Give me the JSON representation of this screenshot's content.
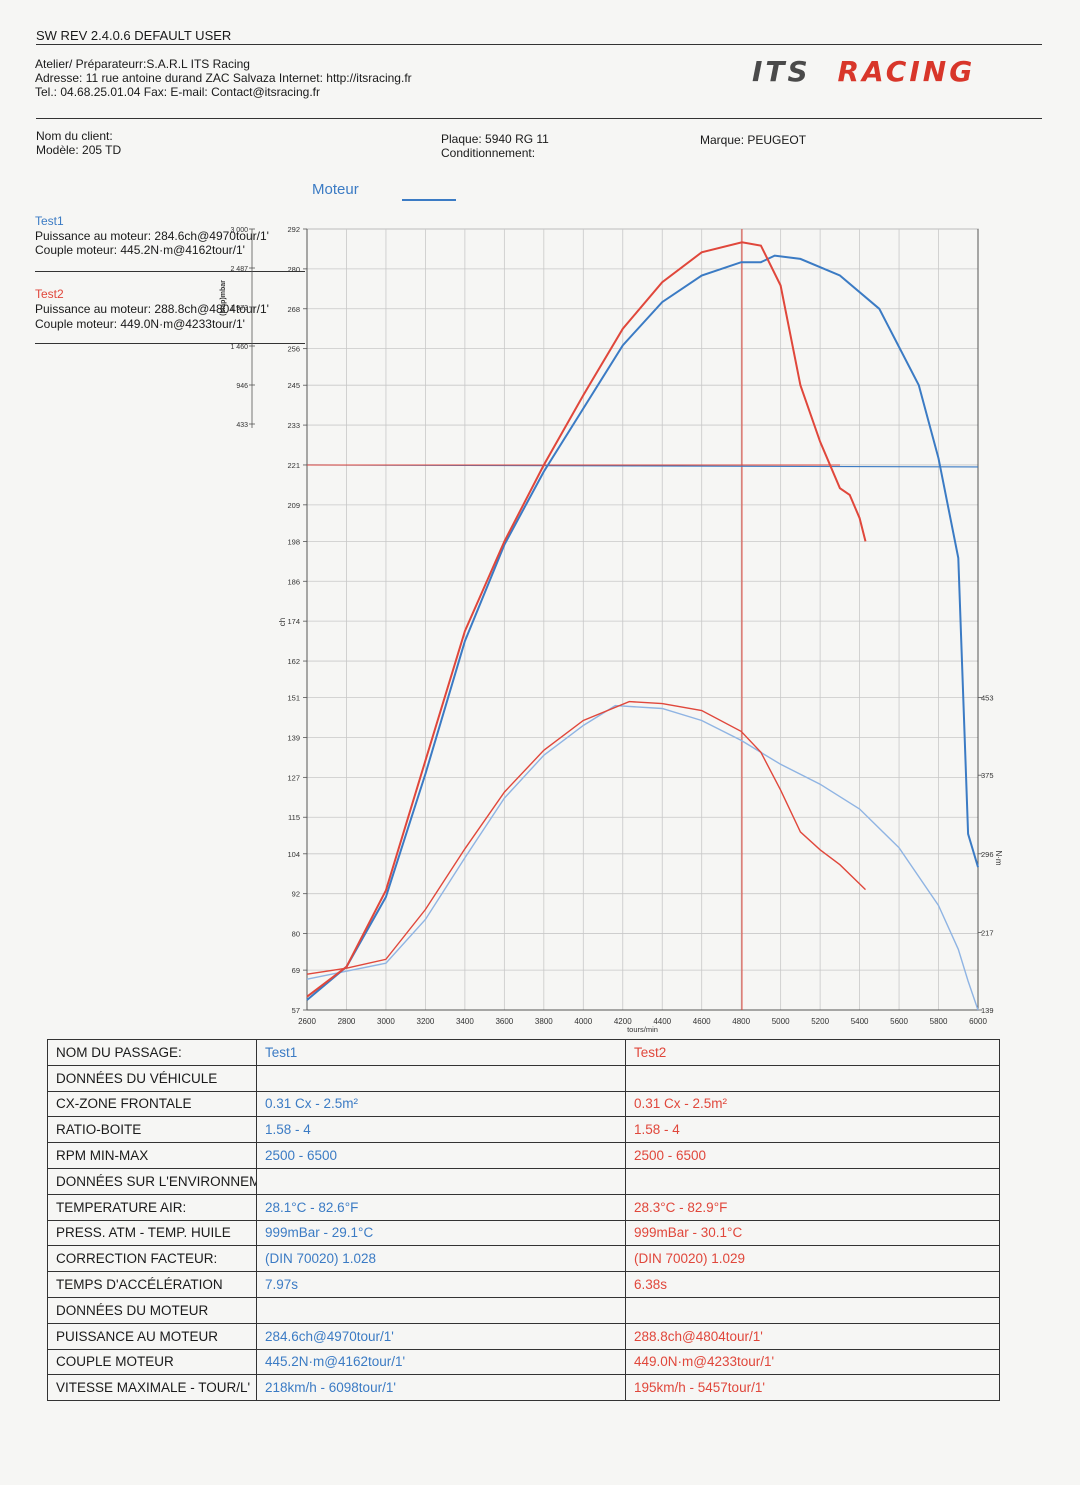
{
  "header": {
    "sw_line": "SW REV 2.4.0.6   DEFAULT USER",
    "atelier": "Atelier/ Préparateurr:S.A.R.L ITS Racing",
    "adresse": "Adresse: 11 rue antoine durand ZAC Salvaza Internet: http://itsracing.fr",
    "tel": "Tel.: 04.68.25.01.04 Fax:  E-mail: Contact@itsracing.fr",
    "brand_its": "ITS",
    "brand_racing": "RACING"
  },
  "client": {
    "nom": "Nom du client:",
    "modele": "Modèle: 205 TD",
    "plaque": "Plaque: 5940 RG 11",
    "conditionnement": "Conditionnement:",
    "marque": "Marque: PEUGEOT"
  },
  "legend": {
    "moteur": "Moteur",
    "test1_title": "Test1",
    "test1_power": "Puissance au moteur: 284.6ch@4970tour/1'",
    "test1_torque": "Couple moteur: 445.2N·m@4162tour/1'",
    "test2_title": "Test2",
    "test2_power": "Puissance au moteur: 288.8ch@4804tour/1'",
    "test2_torque": "Couple moteur: 449.0N·m@4233tour/1'"
  },
  "colors": {
    "test1": "#3b7bc4",
    "test1_torque": "#8fb4e3",
    "test2": "#e0473b"
  },
  "chart_data": {
    "type": "line",
    "xlabel": "tours/min",
    "ylabel_left": "ch",
    "ylabel_right": "N·m",
    "ylabel_map": "(Map)mbar",
    "xlim": [
      2600,
      6000
    ],
    "ylim": [
      57,
      292
    ],
    "y2lim": [
      139,
      453
    ],
    "x_ticks": [
      "2600",
      "2800",
      "3000",
      "3200",
      "3400",
      "3600",
      "3800",
      "4000",
      "4200",
      "4400",
      "4600",
      "4800",
      "5000",
      "5200",
      "5400",
      "5600",
      "5800",
      "6000"
    ],
    "y_ticks": [
      "57",
      "69",
      "80",
      "92",
      "104",
      "115",
      "127",
      "139",
      "151",
      "162",
      "174",
      "186",
      "198",
      "209",
      "221",
      "233",
      "245",
      "256",
      "268",
      "280",
      "292"
    ],
    "y2_ticks": [
      "139",
      "217",
      "296",
      "375",
      "453"
    ],
    "map_ticks": [
      "3 000",
      "2 487",
      "1 973",
      "1 460",
      "946",
      "433"
    ],
    "power_series": [
      {
        "name": "Test1",
        "x": [
          2600,
          2800,
          3000,
          3200,
          3400,
          3600,
          3800,
          4000,
          4200,
          4400,
          4600,
          4800,
          4900,
          4970,
          5100,
          5300,
          5500,
          5700,
          5800,
          5900,
          5950,
          6000
        ],
        "y": [
          60,
          70,
          91,
          128,
          168,
          197,
          219,
          238,
          257,
          270,
          278,
          282,
          282,
          284,
          283,
          278,
          268,
          245,
          223,
          193,
          110,
          100
        ]
      },
      {
        "name": "Test2",
        "x": [
          2600,
          2800,
          3000,
          3200,
          3400,
          3600,
          3800,
          4000,
          4200,
          4400,
          4600,
          4804,
          4900,
          5000,
          5100,
          5200,
          5300,
          5350,
          5400,
          5430
        ],
        "y": [
          61,
          70,
          93,
          132,
          171,
          198,
          221,
          242,
          262,
          276,
          285,
          288,
          287,
          275,
          245,
          228,
          214,
          212,
          205,
          198
        ]
      }
    ],
    "torque_series": [
      {
        "name": "Test1",
        "x": [
          2600,
          2800,
          3000,
          3200,
          3400,
          3600,
          3800,
          4000,
          4162,
          4400,
          4600,
          4800,
          5000,
          5200,
          5400,
          5600,
          5800,
          5900,
          5950,
          6000
        ],
        "y": [
          170,
          178,
          186,
          230,
          292,
          352,
          395,
          425,
          445,
          442,
          430,
          410,
          386,
          366,
          341,
          302,
          244,
          200,
          168,
          139
        ]
      },
      {
        "name": "Test2",
        "x": [
          2600,
          2800,
          3000,
          3200,
          3400,
          3600,
          3800,
          4000,
          4233,
          4400,
          4600,
          4800,
          4900,
          5000,
          5100,
          5200,
          5300,
          5430
        ],
        "y": [
          175,
          181,
          190,
          240,
          301,
          358,
          400,
          430,
          449,
          447,
          440,
          419,
          398,
          360,
          318,
          300,
          285,
          260
        ]
      }
    ],
    "markers": {
      "vertical_rpm": 4804,
      "horizontal_ch": 221
    }
  },
  "table": {
    "headers": [
      "NOM DU PASSAGE:",
      "Test1",
      "Test2"
    ],
    "rows": [
      {
        "label": "DONNÉES DU VÉHICULE",
        "t1": "",
        "t2": ""
      },
      {
        "label": "CX-ZONE FRONTALE",
        "t1": "0.31 Cx - 2.5m²",
        "t2": "0.31 Cx - 2.5m²"
      },
      {
        "label": "RATIO-BOITE",
        "t1": "1.58 - 4",
        "t2": "1.58 - 4"
      },
      {
        "label": "RPM MIN-MAX",
        "t1": "2500 - 6500",
        "t2": "2500 - 6500"
      },
      {
        "label": "DONNÉES SUR L'ENVIRONNEMI",
        "t1": "",
        "t2": ""
      },
      {
        "label": "TEMPERATURE AIR:",
        "t1": "28.1°C - 82.6°F",
        "t2": "28.3°C - 82.9°F"
      },
      {
        "label": "PRESS. ATM - TEMP. HUILE",
        "t1": "999mBar - 29.1°C",
        "t2": "999mBar - 30.1°C"
      },
      {
        "label": "CORRECTION FACTEUR:",
        "t1": "(DIN 70020) 1.028",
        "t2": "(DIN 70020) 1.029"
      },
      {
        "label": "TEMPS D'ACCÉLÉRATION",
        "t1": "7.97s",
        "t2": "6.38s"
      },
      {
        "label": "DONNÉES DU MOTEUR",
        "t1": "",
        "t2": ""
      },
      {
        "label": "PUISSANCE AU MOTEUR",
        "t1": "284.6ch@4970tour/1'",
        "t2": "288.8ch@4804tour/1'"
      },
      {
        "label": "COUPLE MOTEUR",
        "t1": "445.2N·m@4162tour/1'",
        "t2": "449.0N·m@4233tour/1'"
      },
      {
        "label": "VITESSE MAXIMALE - TOUR/L'",
        "t1": "218km/h - 6098tour/1'",
        "t2": "195km/h - 5457tour/1'"
      }
    ]
  }
}
